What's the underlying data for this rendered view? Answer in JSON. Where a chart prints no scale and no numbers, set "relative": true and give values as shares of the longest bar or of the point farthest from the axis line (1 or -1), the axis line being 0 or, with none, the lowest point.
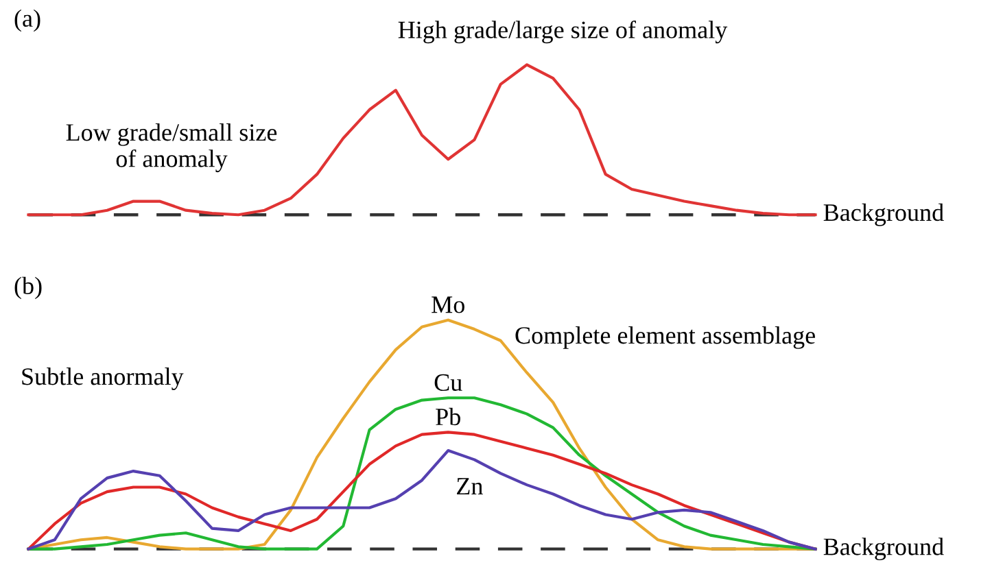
{
  "chart_data": [
    {
      "type": "line",
      "title": "(a)",
      "relative": true,
      "categories": [
        null,
        null,
        null,
        null,
        null,
        null,
        null,
        null,
        null,
        null,
        null,
        null,
        null,
        null,
        null,
        null,
        null,
        null,
        null,
        null,
        null,
        null,
        null,
        null,
        null,
        null,
        null,
        null,
        null,
        null,
        null
      ],
      "series": [
        {
          "color": "#e03434",
          "values": [
            0,
            0,
            0,
            0.03,
            0.09,
            0.09,
            0.03,
            0.01,
            0,
            0.03,
            0.11,
            0.27,
            0.51,
            0.7,
            0.83,
            0.53,
            0.37,
            0.5,
            0.87,
            1.0,
            0.91,
            0.7,
            0.27,
            0.17,
            0.13,
            0.09,
            0.06,
            0.03,
            0.01,
            0,
            0
          ]
        }
      ],
      "ref_lines": [
        {
          "axis": "y",
          "value": 0,
          "label": "Background",
          "color": "#333333",
          "line_style": "dashed"
        }
      ],
      "annotations": [
        "High grade/large size of anomaly",
        "Low grade/small size\nof anomaly"
      ]
    },
    {
      "type": "line",
      "title": "(b)",
      "relative": true,
      "categories": [
        null,
        null,
        null,
        null,
        null,
        null,
        null,
        null,
        null,
        null,
        null,
        null,
        null,
        null,
        null,
        null,
        null,
        null,
        null,
        null,
        null,
        null,
        null,
        null,
        null,
        null,
        null,
        null,
        null,
        null,
        null
      ],
      "series": [
        {
          "name": "Mo",
          "color": "#e8a830",
          "values": [
            0,
            0.02,
            0.04,
            0.05,
            0.03,
            0.01,
            0,
            0,
            0,
            0.02,
            0.17,
            0.4,
            0.57,
            0.73,
            0.87,
            0.97,
            1.0,
            0.96,
            0.91,
            0.77,
            0.64,
            0.44,
            0.27,
            0.13,
            0.04,
            0.01,
            0,
            0,
            0,
            0,
            0
          ]
        },
        {
          "name": "Cu",
          "color": "#22b833",
          "values": [
            0,
            0,
            0.01,
            0.02,
            0.04,
            0.06,
            0.07,
            0.04,
            0.01,
            0,
            0,
            0,
            0.1,
            0.52,
            0.61,
            0.65,
            0.66,
            0.66,
            0.63,
            0.59,
            0.53,
            0.41,
            0.32,
            0.24,
            0.16,
            0.1,
            0.06,
            0.04,
            0.02,
            0.01,
            0
          ]
        },
        {
          "name": "Pb",
          "color": "#e02828",
          "values": [
            0,
            0.11,
            0.2,
            0.25,
            0.27,
            0.27,
            0.24,
            0.18,
            0.14,
            0.11,
            0.08,
            0.13,
            0.25,
            0.37,
            0.45,
            0.5,
            0.51,
            0.5,
            0.47,
            0.44,
            0.41,
            0.37,
            0.33,
            0.28,
            0.24,
            0.19,
            0.15,
            0.11,
            0.07,
            0.03,
            0
          ]
        },
        {
          "name": "Zn",
          "color": "#5540b0",
          "values": [
            0,
            0.04,
            0.22,
            0.31,
            0.34,
            0.32,
            0.21,
            0.09,
            0.08,
            0.15,
            0.18,
            0.18,
            0.18,
            0.18,
            0.22,
            0.3,
            0.43,
            0.39,
            0.33,
            0.28,
            0.24,
            0.19,
            0.15,
            0.13,
            0.16,
            0.17,
            0.16,
            0.12,
            0.08,
            0.03,
            0
          ]
        }
      ],
      "ref_lines": [
        {
          "axis": "y",
          "value": 0,
          "label": "Background",
          "color": "#333333",
          "line_style": "dashed"
        }
      ],
      "annotations": [
        "Complete element assemblage",
        "Subtle anormaly"
      ]
    }
  ]
}
